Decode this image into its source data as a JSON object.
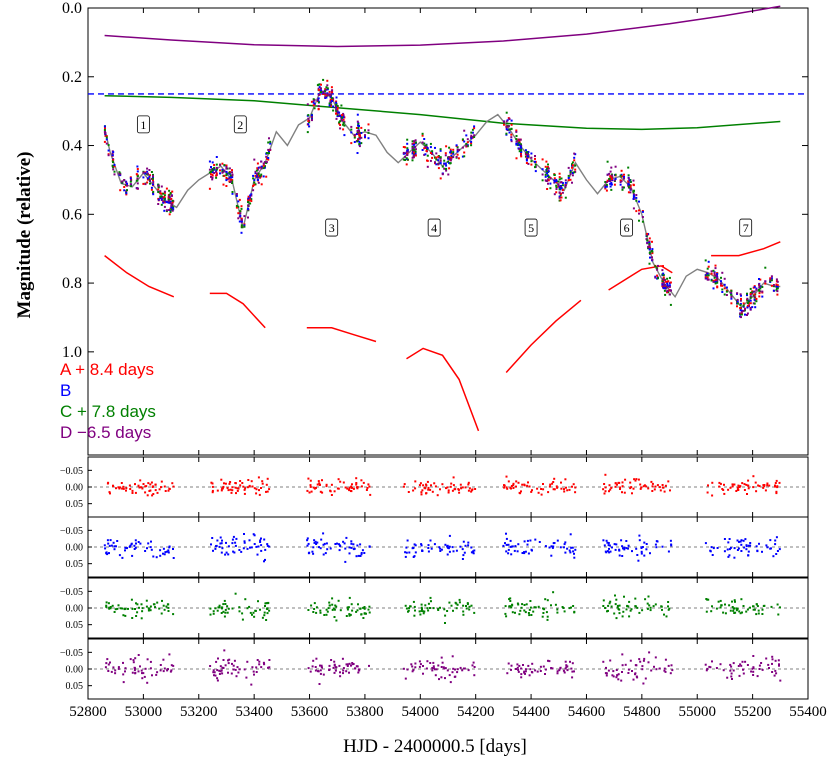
{
  "chart_data": {
    "type": "scatter",
    "xlabel": "HJD - 2400000.5 [days]",
    "ylabel": "Magnitude (relative)",
    "xlim": [
      52800,
      55400
    ],
    "x_ticks": [
      52800,
      53000,
      53200,
      53400,
      53600,
      53800,
      54000,
      54200,
      54400,
      54600,
      54800,
      55000,
      55200,
      55400
    ],
    "main_panel": {
      "ylim": [
        0.0,
        1.3
      ],
      "y_inverted": true,
      "y_ticks": [
        0.0,
        0.2,
        0.4,
        0.6,
        0.8,
        1.0
      ],
      "y_tick_labels": [
        "0.0",
        "0.2",
        "0.4",
        "0.6",
        "0.8",
        "1.0"
      ],
      "reference_line": {
        "y": 0.25,
        "style": "dashed",
        "color": "#0000ff"
      },
      "model_curve": {
        "color": "#808080",
        "x": [
          52860,
          52880,
          52920,
          52960,
          53000,
          53040,
          53080,
          53120,
          53160,
          53200,
          53240,
          53280,
          53320,
          53360,
          53400,
          53440,
          53480,
          53520,
          53560,
          53600,
          53640,
          53680,
          53720,
          53760,
          53800,
          53840,
          53880,
          53920,
          53960,
          54000,
          54040,
          54080,
          54120,
          54160,
          54200,
          54240,
          54280,
          54320,
          54360,
          54400,
          54440,
          54480,
          54520,
          54560,
          54600,
          54640,
          54680,
          54720,
          54760,
          54800,
          54840,
          54880,
          54920,
          54960,
          55000,
          55040,
          55080,
          55120,
          55160,
          55200,
          55240,
          55280,
          55300
        ],
        "y": [
          0.35,
          0.42,
          0.51,
          0.52,
          0.48,
          0.52,
          0.56,
          0.58,
          0.53,
          0.5,
          0.48,
          0.46,
          0.5,
          0.64,
          0.5,
          0.45,
          0.36,
          0.4,
          0.34,
          0.32,
          0.24,
          0.26,
          0.33,
          0.37,
          0.36,
          0.37,
          0.42,
          0.45,
          0.42,
          0.39,
          0.42,
          0.46,
          0.43,
          0.4,
          0.37,
          0.33,
          0.31,
          0.35,
          0.4,
          0.44,
          0.47,
          0.5,
          0.53,
          0.45,
          0.5,
          0.54,
          0.5,
          0.49,
          0.52,
          0.6,
          0.74,
          0.8,
          0.84,
          0.78,
          0.76,
          0.77,
          0.79,
          0.83,
          0.87,
          0.84,
          0.8,
          0.81,
          0.81
        ]
      },
      "seasons": [
        {
          "label": "1",
          "x": 53000,
          "y": 0.34,
          "start": 52860,
          "end": 53110
        },
        {
          "label": "2",
          "x": 53350,
          "y": 0.34,
          "start": 53240,
          "end": 53460
        },
        {
          "label": "3",
          "x": 53680,
          "y": 0.64,
          "start": 53590,
          "end": 53820
        },
        {
          "label": "4",
          "x": 54050,
          "y": 0.64,
          "start": 53940,
          "end": 54200
        },
        {
          "label": "5",
          "x": 54400,
          "y": 0.64,
          "start": 54300,
          "end": 54560
        },
        {
          "label": "6",
          "x": 54745,
          "y": 0.64,
          "start": 54660,
          "end": 54910
        },
        {
          "label": "7",
          "x": 55175,
          "y": 0.64,
          "start": 55030,
          "end": 55300
        }
      ],
      "microlensing_curves": [
        {
          "name": "A",
          "color": "#ff0000",
          "segments": [
            {
              "x": [
                52860,
                52940,
                53020,
                53110
              ],
              "y": [
                0.72,
                0.77,
                0.81,
                0.84
              ]
            },
            {
              "x": [
                53240,
                53300,
                53360,
                53440
              ],
              "y": [
                0.83,
                0.83,
                0.86,
                0.93
              ]
            },
            {
              "x": [
                53590,
                53680,
                53760,
                53840
              ],
              "y": [
                0.93,
                0.93,
                0.95,
                0.97
              ]
            },
            {
              "x": [
                53950,
                54010,
                54080,
                54140,
                54210
              ],
              "y": [
                1.02,
                0.99,
                1.01,
                1.08,
                1.23
              ]
            },
            {
              "x": [
                54310,
                54400,
                54490,
                54580
              ],
              "y": [
                1.06,
                0.98,
                0.91,
                0.85
              ]
            },
            {
              "x": [
                54680,
                54740,
                54800,
                54870,
                54910
              ],
              "y": [
                0.82,
                0.79,
                0.76,
                0.75,
                0.77
              ]
            },
            {
              "x": [
                55050,
                55150,
                55240,
                55300
              ],
              "y": [
                0.72,
                0.72,
                0.7,
                0.68
              ]
            }
          ]
        },
        {
          "name": "C",
          "color": "#008000",
          "segments": [
            {
              "x": [
                52860,
                53100,
                53400,
                53700,
                54000,
                54300,
                54600,
                54800,
                55000,
                55300
              ],
              "y": [
                0.255,
                0.26,
                0.27,
                0.29,
                0.31,
                0.335,
                0.35,
                0.353,
                0.348,
                0.33
              ]
            }
          ]
        },
        {
          "name": "D",
          "color": "#800080",
          "segments": [
            {
              "x": [
                52860,
                53100,
                53400,
                53700,
                54000,
                54300,
                54600,
                54900,
                55100,
                55300
              ],
              "y": [
                0.08,
                0.093,
                0.107,
                0.112,
                0.108,
                0.096,
                0.076,
                0.046,
                0.022,
                -0.005
              ]
            }
          ]
        }
      ],
      "scatter_series": [
        {
          "name": "A",
          "color": "#ff0000"
        },
        {
          "name": "B",
          "color": "#0000ff"
        },
        {
          "name": "C",
          "color": "#008000"
        },
        {
          "name": "D",
          "color": "#800080"
        }
      ],
      "scatter_noise": 0.028
    },
    "residual_panels": [
      {
        "name": "A",
        "color": "#ff0000",
        "scatter": 0.02
      },
      {
        "name": "B",
        "color": "#0000ff",
        "scatter": 0.03
      },
      {
        "name": "C",
        "color": "#008000",
        "scatter": 0.026
      },
      {
        "name": "D",
        "color": "#800080",
        "scatter": 0.03
      }
    ],
    "residual_ylim": [
      -0.09,
      0.09
    ],
    "residual_y_ticks": [
      -0.05,
      0.0,
      0.05
    ],
    "residual_y_tick_labels": [
      "−0.05",
      "0.00",
      "0.05"
    ],
    "legend": {
      "placement": "lower-left of top panel",
      "entries": [
        {
          "text": "A + 8.4 days",
          "color": "#ff0000"
        },
        {
          "text": "B",
          "color": "#0000ff"
        },
        {
          "text": "C + 7.8 days",
          "color": "#008000"
        },
        {
          "text": "D −6.5 days",
          "color": "#800080"
        }
      ]
    }
  }
}
